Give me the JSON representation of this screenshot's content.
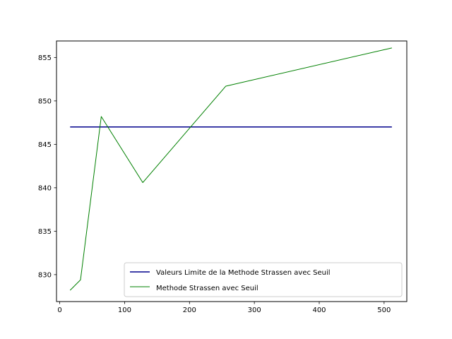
{
  "chart_data": {
    "type": "line",
    "title": "",
    "xlabel": "",
    "ylabel": "",
    "xlim": [
      -5,
      535
    ],
    "ylim": [
      826.9,
      856.9
    ],
    "xticks": [
      0,
      100,
      200,
      300,
      400,
      500
    ],
    "yticks": [
      830,
      835,
      840,
      845,
      850,
      855
    ],
    "grid": false,
    "legend_position": "lower-right",
    "series": [
      {
        "name": "Valeurs Limite de la Methode Strassen avec Seuil",
        "color": "#00008b",
        "x": [
          16,
          512
        ],
        "y": [
          847.0,
          847.0
        ]
      },
      {
        "name": "Methode Strassen avec Seuil",
        "color": "#008000",
        "x": [
          16,
          32,
          64,
          128,
          256,
          512
        ],
        "y": [
          828.2,
          829.4,
          848.2,
          840.6,
          851.7,
          856.1
        ]
      }
    ]
  }
}
